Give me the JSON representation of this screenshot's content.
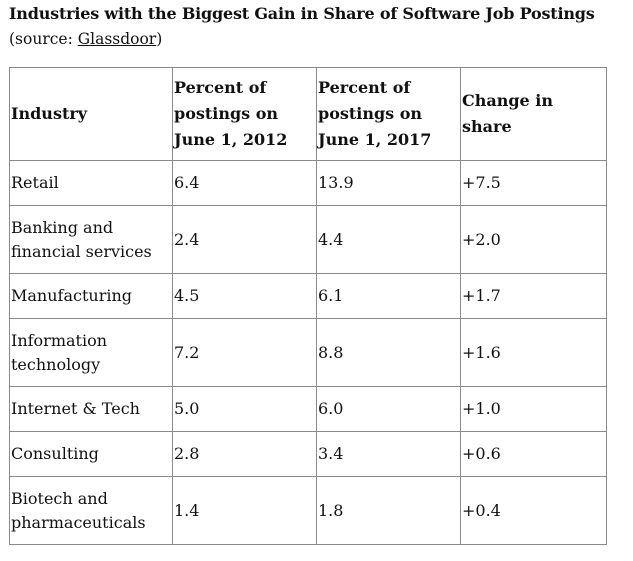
{
  "title": "Industries with the Biggest Gain in Share of Software Job Postings",
  "source_prefix": "(source: ",
  "source_link": "Glassdoor",
  "source_suffix": ")",
  "headers": [
    "Industry",
    "Percent of postings on June 1, 2012",
    "Percent of postings on June 1, 2017",
    "Change in share"
  ],
  "rows": [
    {
      "industry": "Retail",
      "y2012": "6.4",
      "y2017": "13.9",
      "change": "+7.5"
    },
    {
      "industry": "Banking and financial services",
      "y2012": "2.4",
      "y2017": "4.4",
      "change": "+2.0"
    },
    {
      "industry": "Manufacturing",
      "y2012": "4.5",
      "y2017": "6.1",
      "change": "+1.7"
    },
    {
      "industry": "Information technology",
      "y2012": "7.2",
      "y2017": "8.8",
      "change": "+1.6"
    },
    {
      "industry": "Internet & Tech",
      "y2012": "5.0",
      "y2017": "6.0",
      "change": "+1.0"
    },
    {
      "industry": "Consulting",
      "y2012": "2.8",
      "y2017": "3.4",
      "change": "+0.6"
    },
    {
      "industry": "Biotech and pharmaceuticals",
      "y2012": "1.4",
      "y2017": "1.8",
      "change": "+0.4"
    }
  ]
}
